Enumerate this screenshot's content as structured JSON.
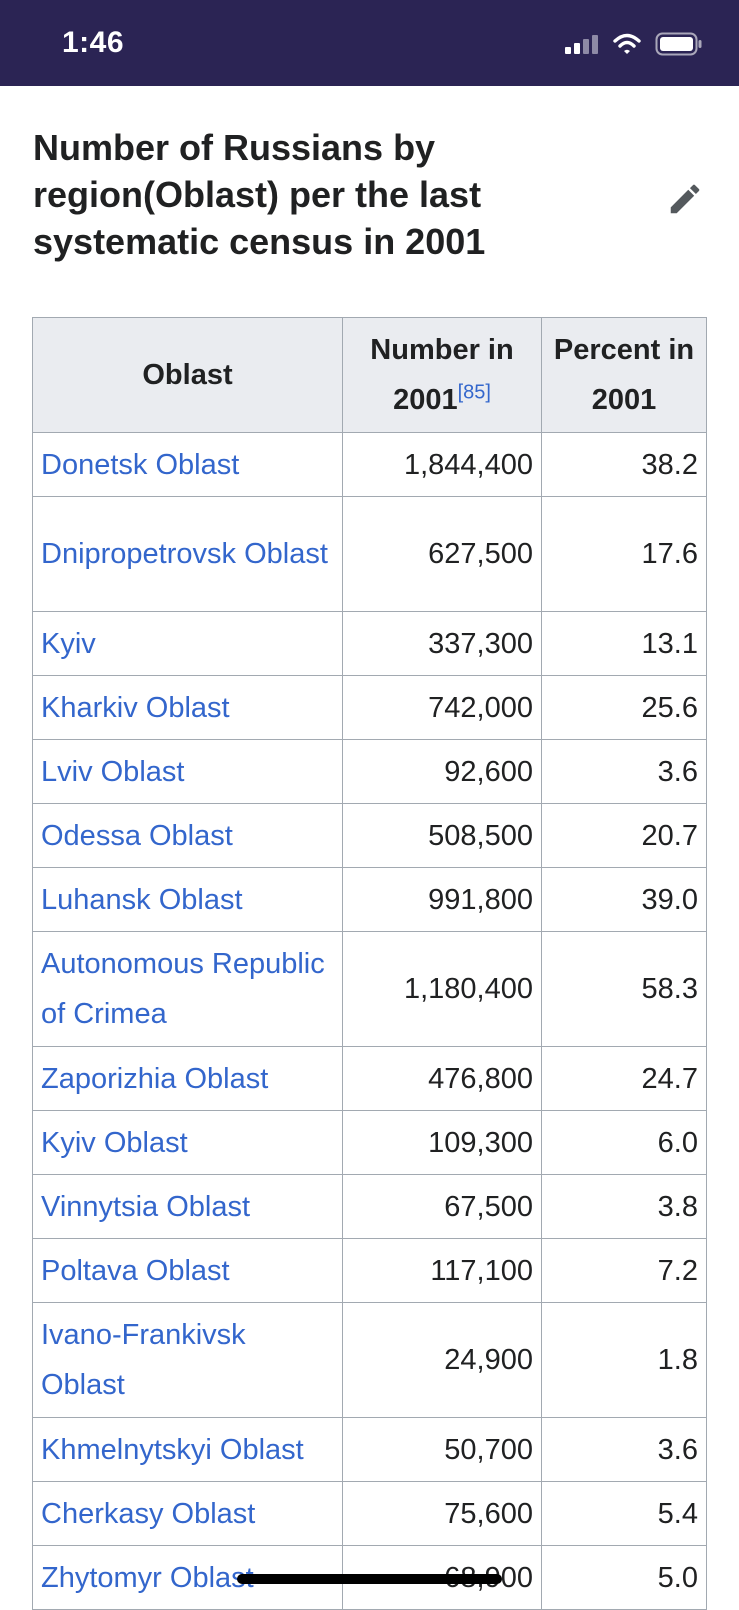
{
  "status_bar": {
    "time": "1:46",
    "icons": [
      "signal-icon",
      "wifi-icon",
      "battery-icon"
    ]
  },
  "title": "Number of Russians by region(Oblast) per the last systematic census in 2001",
  "edit_icon": "pencil-icon",
  "table": {
    "headers": {
      "oblast": "Oblast",
      "number": "Number in 2001",
      "number_ref": "[85]",
      "percent": "Percent in 2001"
    },
    "rows": [
      {
        "oblast": "Donetsk Oblast",
        "number": "1,844,400",
        "percent": "38.2"
      },
      {
        "oblast": "Dnipropetrovsk Oblast",
        "number": "627,500",
        "percent": "17.6"
      },
      {
        "oblast": "Kyiv",
        "number": "337,300",
        "percent": "13.1"
      },
      {
        "oblast": "Kharkiv Oblast",
        "number": "742,000",
        "percent": "25.6"
      },
      {
        "oblast": "Lviv Oblast",
        "number": "92,600",
        "percent": "3.6"
      },
      {
        "oblast": "Odessa Oblast",
        "number": "508,500",
        "percent": "20.7"
      },
      {
        "oblast": "Luhansk Oblast",
        "number": "991,800",
        "percent": "39.0"
      },
      {
        "oblast": "Autonomous Republic of Crimea",
        "number": "1,180,400",
        "percent": "58.3"
      },
      {
        "oblast": "Zaporizhia Oblast",
        "number": "476,800",
        "percent": "24.7"
      },
      {
        "oblast": "Kyiv Oblast",
        "number": "109,300",
        "percent": "6.0"
      },
      {
        "oblast": "Vinnytsia Oblast",
        "number": "67,500",
        "percent": "3.8"
      },
      {
        "oblast": "Poltava Oblast",
        "number": "117,100",
        "percent": "7.2"
      },
      {
        "oblast": "Ivano-Frankivsk Oblast",
        "number": "24,900",
        "percent": "1.8"
      },
      {
        "oblast": "Khmelnytskyi Oblast",
        "number": "50,700",
        "percent": "3.6"
      },
      {
        "oblast": "Cherkasy Oblast",
        "number": "75,600",
        "percent": "5.4"
      },
      {
        "oblast": "Zhytomyr Oblast",
        "number": "68,900",
        "percent": "5.0"
      }
    ]
  },
  "colors": {
    "status_bar": "#2b2454",
    "link": "#3366cc",
    "header_bg": "#eaecf0",
    "border": "#a2a9b1",
    "text": "#202122"
  }
}
